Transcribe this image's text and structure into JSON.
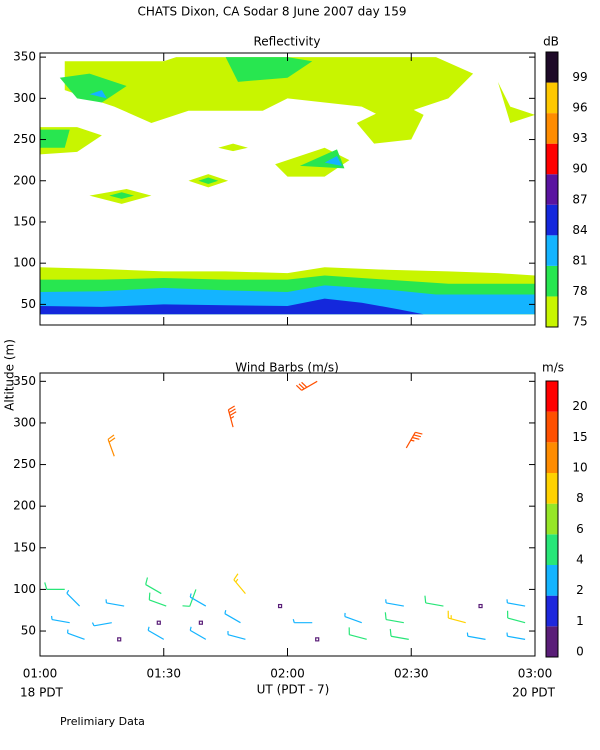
{
  "chart_data": [
    {
      "type": "contour",
      "suptitle": "CHATS Dixon, CA  Sodar   8 June 2007   day 159",
      "title": "Reflectivity",
      "xlim": [
        1,
        3
      ],
      "xticks": [
        1,
        1.5,
        2,
        2.5,
        3
      ],
      "ylim": [
        25,
        355
      ],
      "yticks": [
        50,
        100,
        150,
        200,
        250,
        300,
        350
      ],
      "colorbar": {
        "label": "dB",
        "levels": [
          75,
          78,
          81,
          84,
          87,
          90,
          93,
          96,
          99
        ],
        "colors": [
          "#c8f500",
          "#28e650",
          "#14b4ff",
          "#1428dc",
          "#5a14a0",
          "#ff0000",
          "#ff8c00",
          "#ffc800",
          "#1e0a28"
        ]
      },
      "regions": [
        {
          "level": 75,
          "points": [
            [
              1,
              38
            ],
            [
              1,
              95
            ],
            [
              1.25,
              93
            ],
            [
              1.5,
              90
            ],
            [
              1.75,
              90
            ],
            [
              2,
              88
            ],
            [
              2.15,
              95
            ],
            [
              2.4,
              92
            ],
            [
              2.65,
              90
            ],
            [
              2.85,
              88
            ],
            [
              3,
              85
            ],
            [
              3,
              38
            ]
          ]
        },
        {
          "level": 78,
          "points": [
            [
              1,
              38
            ],
            [
              1,
              80
            ],
            [
              1.25,
              80
            ],
            [
              1.5,
              82
            ],
            [
              1.75,
              80
            ],
            [
              2,
              80
            ],
            [
              2.15,
              85
            ],
            [
              2.4,
              80
            ],
            [
              2.65,
              75
            ],
            [
              2.85,
              75
            ],
            [
              3,
              75
            ],
            [
              3,
              38
            ]
          ]
        },
        {
          "level": 81,
          "points": [
            [
              1,
              38
            ],
            [
              1,
              65
            ],
            [
              1.25,
              66
            ],
            [
              1.5,
              70
            ],
            [
              1.75,
              67
            ],
            [
              2,
              65
            ],
            [
              2.15,
              73
            ],
            [
              2.4,
              68
            ],
            [
              2.6,
              62
            ],
            [
              2.85,
              62
            ],
            [
              3,
              62
            ],
            [
              3,
              38
            ]
          ]
        },
        {
          "level": 84,
          "points": [
            [
              1,
              38
            ],
            [
              1,
              48
            ],
            [
              1.25,
              47
            ],
            [
              1.5,
              50
            ],
            [
              1.75,
              49
            ],
            [
              2,
              48
            ],
            [
              2.15,
              57
            ],
            [
              2.3,
              52
            ],
            [
              2.45,
              44
            ],
            [
              2.55,
              38
            ]
          ]
        },
        {
          "level": 75,
          "points": [
            [
              1.1,
              345
            ],
            [
              1.5,
              345
            ],
            [
              1.55,
              350
            ],
            [
              2.6,
              350
            ],
            [
              2.75,
              330
            ],
            [
              2.65,
              300
            ],
            [
              2.4,
              275
            ],
            [
              2.3,
              290
            ],
            [
              2,
              300
            ],
            [
              1.9,
              285
            ],
            [
              1.6,
              285
            ],
            [
              1.45,
              270
            ],
            [
              1.3,
              290
            ],
            [
              1.1,
              310
            ]
          ]
        },
        {
          "level": 75,
          "points": [
            [
              1,
              265
            ],
            [
              1.15,
              265
            ],
            [
              1.25,
              255
            ],
            [
              1.15,
              235
            ],
            [
              1,
              232
            ]
          ]
        },
        {
          "level": 75,
          "points": [
            [
              2.28,
              270
            ],
            [
              2.45,
              295
            ],
            [
              2.55,
              280
            ],
            [
              2.5,
              250
            ],
            [
              2.35,
              245
            ]
          ]
        },
        {
          "level": 75,
          "points": [
            [
              1.95,
              220
            ],
            [
              2.15,
              240
            ],
            [
              2.25,
              225
            ],
            [
              2.15,
              205
            ],
            [
              2,
              205
            ]
          ]
        },
        {
          "level": 75,
          "points": [
            [
              1.6,
              200
            ],
            [
              1.68,
              208
            ],
            [
              1.76,
              200
            ],
            [
              1.68,
              192
            ]
          ]
        },
        {
          "level": 75,
          "points": [
            [
              1.2,
              182
            ],
            [
              1.35,
              190
            ],
            [
              1.45,
              182
            ],
            [
              1.33,
              172
            ]
          ]
        },
        {
          "level": 75,
          "points": [
            [
              2.85,
              320
            ],
            [
              2.9,
              290
            ],
            [
              3,
              280
            ],
            [
              2.9,
              270
            ]
          ]
        },
        {
          "level": 75,
          "points": [
            [
              1.72,
              240
            ],
            [
              1.78,
              245
            ],
            [
              1.84,
              240
            ],
            [
              1.78,
              236
            ]
          ]
        },
        {
          "level": 78,
          "points": [
            [
              1.08,
              325
            ],
            [
              1.2,
              330
            ],
            [
              1.35,
              315
            ],
            [
              1.25,
              295
            ],
            [
              1.15,
              300
            ]
          ]
        },
        {
          "level": 78,
          "points": [
            [
              1,
              262
            ],
            [
              1.12,
              262
            ],
            [
              1.1,
              240
            ],
            [
              1,
              240
            ]
          ]
        },
        {
          "level": 78,
          "points": [
            [
              1.75,
              350
            ],
            [
              2,
              350
            ],
            [
              2.1,
              345
            ],
            [
              2,
              325
            ],
            [
              1.8,
              320
            ]
          ]
        },
        {
          "level": 78,
          "points": [
            [
              2.05,
              218
            ],
            [
              2.2,
              238
            ],
            [
              2.23,
              215
            ]
          ]
        },
        {
          "level": 78,
          "points": [
            [
              1.28,
              182
            ],
            [
              1.33,
              186
            ],
            [
              1.38,
              182
            ],
            [
              1.33,
              178
            ]
          ]
        },
        {
          "level": 78,
          "points": [
            [
              1.64,
              200
            ],
            [
              1.68,
              204
            ],
            [
              1.72,
              200
            ],
            [
              1.68,
              196
            ]
          ]
        },
        {
          "level": 81,
          "points": [
            [
              1.2,
              305
            ],
            [
              1.25,
              310
            ],
            [
              1.27,
              300
            ]
          ]
        },
        {
          "level": 81,
          "points": [
            [
              2.15,
              222
            ],
            [
              2.2,
              230
            ],
            [
              2.22,
              218
            ]
          ]
        }
      ]
    },
    {
      "type": "barbs",
      "title": "Wind Barbs (m/s)",
      "ylabel": "Altitude (m)",
      "xlabel": "UT  (PDT - 7)",
      "x_start_label": "18 PDT",
      "x_end_label": "20 PDT",
      "xlim": [
        1,
        3
      ],
      "xticks": [
        {
          "value": 1,
          "label": "01:00"
        },
        {
          "value": 1.5,
          "label": "01:30"
        },
        {
          "value": 2,
          "label": "02:00"
        },
        {
          "value": 2.5,
          "label": "02:30"
        },
        {
          "value": 3,
          "label": "03:00"
        }
      ],
      "ylim": [
        20,
        360
      ],
      "yticks": [
        50,
        100,
        150,
        200,
        250,
        300,
        350
      ],
      "colorbar": {
        "label": "m/s",
        "levels": [
          0,
          1,
          2,
          4,
          6,
          8,
          10,
          15,
          20
        ],
        "colors": [
          "#5a1e78",
          "#1e28dc",
          "#14b4ff",
          "#28e678",
          "#96e628",
          "#ffd200",
          "#ff8c00",
          "#ff5000",
          "#ff0000"
        ]
      },
      "barbs": {
        "x": [
          1.1,
          1.49,
          1.63,
          1.83,
          1.16,
          1.34,
          1.51,
          1.67,
          1.97,
          2.47,
          2.63,
          2.78,
          2.96,
          1.12,
          1.29,
          1.48,
          1.65,
          1.81,
          2.1,
          2.3,
          2.47,
          2.72,
          2.96,
          1.18,
          1.32,
          1.5,
          1.67,
          1.83,
          2.12,
          2.32,
          2.49,
          2.8,
          2.96,
          1.3,
          1.78,
          2.12,
          2.48
        ],
        "alt": [
          100,
          95,
          100,
          95,
          80,
          80,
          80,
          80,
          80,
          80,
          80,
          80,
          80,
          60,
          60,
          60,
          60,
          60,
          60,
          60,
          60,
          60,
          60,
          40,
          40,
          40,
          40,
          40,
          40,
          40,
          40,
          40,
          40,
          260,
          295,
          350,
          270
        ],
        "speed": [
          5,
          5,
          5,
          9,
          2,
          2,
          5,
          2,
          0,
          3,
          5,
          0,
          3,
          3,
          3,
          0,
          0,
          2,
          2,
          2,
          5,
          8,
          5,
          2,
          0,
          2,
          2,
          3,
          0,
          5,
          5,
          3,
          3,
          10,
          17,
          16,
          18
        ],
        "dir": [
          270,
          300,
          200,
          320,
          315,
          280,
          290,
          300,
          0,
          280,
          280,
          0,
          280,
          280,
          260,
          0,
          0,
          300,
          270,
          290,
          280,
          285,
          285,
          290,
          0,
          300,
          300,
          285,
          0,
          285,
          280,
          280,
          280,
          340,
          345,
          240,
          30
        ]
      }
    }
  ],
  "footnote": "Prelimiary Data"
}
